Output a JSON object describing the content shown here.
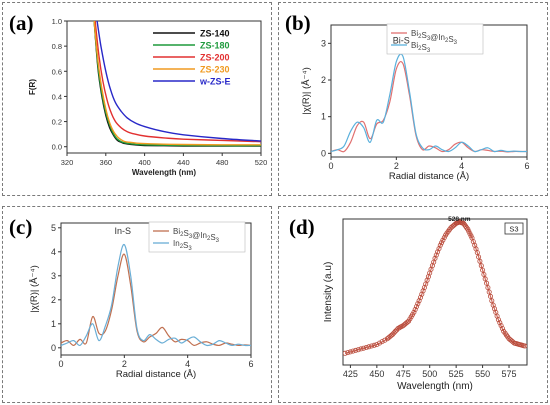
{
  "chart_data": [
    {
      "panel": "(a)",
      "type": "line",
      "xlabel": "Wavelength (nm)",
      "ylabel": "F(R)",
      "xlim": [
        320,
        520
      ],
      "ylim": [
        -0.05,
        1.0
      ],
      "xticks": [
        "320",
        "360",
        "400",
        "440",
        "480",
        "520"
      ],
      "yticks": [
        "0.0",
        "0.2",
        "0.4",
        "0.6",
        "0.8",
        "1.0"
      ],
      "legend_position": "top-right",
      "series": [
        {
          "name": "ZS-140",
          "color": "#111111",
          "x": [
            348,
            352,
            356,
            360,
            364,
            368,
            372,
            376,
            380,
            390,
            400,
            420,
            440,
            480,
            520
          ],
          "y": [
            1.0,
            0.62,
            0.4,
            0.25,
            0.15,
            0.09,
            0.05,
            0.035,
            0.025,
            0.015,
            0.01,
            0.008,
            0.006,
            0.005,
            0.005
          ]
        },
        {
          "name": "ZS-180",
          "color": "#1e9a3c",
          "x": [
            348,
            352,
            356,
            360,
            364,
            368,
            372,
            376,
            380,
            390,
            400,
            420,
            440,
            480,
            520
          ],
          "y": [
            1.0,
            0.64,
            0.42,
            0.27,
            0.17,
            0.1,
            0.06,
            0.04,
            0.03,
            0.02,
            0.015,
            0.012,
            0.01,
            0.008,
            0.008
          ]
        },
        {
          "name": "ZS-200",
          "color": "#e23030",
          "x": [
            349,
            353,
            357,
            361,
            365,
            370,
            376,
            382,
            390,
            400,
            420,
            440,
            480,
            520
          ],
          "y": [
            1.0,
            0.72,
            0.52,
            0.38,
            0.28,
            0.2,
            0.15,
            0.12,
            0.1,
            0.085,
            0.07,
            0.06,
            0.05,
            0.04
          ]
        },
        {
          "name": "ZS-230",
          "color": "#f09a20",
          "x": [
            348,
            352,
            356,
            360,
            364,
            368,
            372,
            376,
            380,
            390,
            400,
            420,
            440,
            480,
            520
          ],
          "y": [
            1.0,
            0.68,
            0.46,
            0.3,
            0.19,
            0.12,
            0.08,
            0.055,
            0.04,
            0.03,
            0.025,
            0.02,
            0.018,
            0.015,
            0.015
          ]
        },
        {
          "name": "w-ZS-E",
          "color": "#2828c8",
          "x": [
            351,
            355,
            360,
            365,
            370,
            376,
            382,
            390,
            400,
            420,
            440,
            480,
            520
          ],
          "y": [
            1.0,
            0.8,
            0.6,
            0.45,
            0.35,
            0.28,
            0.23,
            0.19,
            0.16,
            0.12,
            0.095,
            0.065,
            0.045
          ]
        }
      ]
    },
    {
      "panel": "(b)",
      "type": "line",
      "xlabel": "Radial distance (Å)",
      "ylabel": "|χ(R)| (Å⁻⁴)",
      "xlim": [
        0,
        6
      ],
      "ylim": [
        -0.1,
        3.5
      ],
      "xticks": [
        "0",
        "2",
        "4",
        "6"
      ],
      "yticks": [
        "0",
        "1",
        "2",
        "3"
      ],
      "legend_position": "top-right",
      "annotations": [
        "Bi-S"
      ],
      "series": [
        {
          "name": "Bi2S3@In2S3",
          "color": "#e07070",
          "x": [
            0,
            0.2,
            0.4,
            0.6,
            0.8,
            1.0,
            1.2,
            1.4,
            1.6,
            1.8,
            2.0,
            2.2,
            2.4,
            2.6,
            2.8,
            3.0,
            3.2,
            3.4,
            3.6,
            3.8,
            4.0,
            4.2,
            4.4,
            4.6,
            4.8,
            5.0,
            5.2,
            5.4,
            5.6,
            5.8,
            6.0
          ],
          "y": [
            0.05,
            0.1,
            0.05,
            0.3,
            0.75,
            0.85,
            0.4,
            0.8,
            0.9,
            1.4,
            2.3,
            2.45,
            1.6,
            0.5,
            0.1,
            0.2,
            0.15,
            0.05,
            0.1,
            0.25,
            0.3,
            0.15,
            0.05,
            0.1,
            0.08,
            0.05,
            0.06,
            0.04,
            0.05,
            0.05,
            0.05
          ]
        },
        {
          "name": "Bi2S3",
          "color": "#5ab0dc",
          "x": [
            0,
            0.2,
            0.4,
            0.6,
            0.8,
            1.0,
            1.2,
            1.4,
            1.6,
            1.8,
            2.0,
            2.2,
            2.4,
            2.6,
            2.8,
            3.0,
            3.2,
            3.4,
            3.6,
            3.8,
            4.0,
            4.2,
            4.4,
            4.6,
            4.8,
            5.0,
            5.2,
            5.4,
            5.6,
            5.8,
            6.0
          ],
          "y": [
            0.05,
            0.1,
            0.2,
            0.6,
            0.85,
            0.7,
            0.3,
            0.9,
            0.85,
            1.6,
            2.5,
            2.65,
            1.7,
            0.55,
            0.15,
            0.1,
            0.2,
            0.1,
            0.05,
            0.15,
            0.3,
            0.2,
            0.05,
            0.1,
            0.15,
            0.05,
            0.08,
            0.05,
            0.06,
            0.05,
            0.05
          ]
        }
      ]
    },
    {
      "panel": "(c)",
      "type": "line",
      "xlabel": "Radial distance (Å)",
      "ylabel": "|χ(R)| (Å⁻⁴)",
      "xlim": [
        0,
        6
      ],
      "ylim": [
        -0.3,
        5.2
      ],
      "xticks": [
        "0",
        "2",
        "4",
        "6"
      ],
      "yticks": [
        "0",
        "1",
        "2",
        "3",
        "4",
        "5"
      ],
      "legend_position": "top-right",
      "annotations": [
        "In-S"
      ],
      "series": [
        {
          "name": "Bi2S3@In2S3",
          "color": "#c07050",
          "x": [
            0,
            0.2,
            0.4,
            0.6,
            0.8,
            1.0,
            1.2,
            1.4,
            1.6,
            1.8,
            2.0,
            2.2,
            2.4,
            2.6,
            2.8,
            3.0,
            3.2,
            3.4,
            3.6,
            3.8,
            4.0,
            4.2,
            4.4,
            4.6,
            4.8,
            5.0,
            5.2,
            5.4,
            5.6,
            5.8,
            6.0
          ],
          "y": [
            0.2,
            0.3,
            0.1,
            0.35,
            0.2,
            1.3,
            0.6,
            0.7,
            1.6,
            3.0,
            3.9,
            2.6,
            0.7,
            0.25,
            0.45,
            0.6,
            0.85,
            0.5,
            0.25,
            0.35,
            0.3,
            0.1,
            0.2,
            0.25,
            0.15,
            0.1,
            0.2,
            0.15,
            0.1,
            0.12,
            0.1
          ]
        },
        {
          "name": "In2S3",
          "color": "#6aaed6",
          "x": [
            0,
            0.2,
            0.4,
            0.6,
            0.8,
            1.0,
            1.2,
            1.4,
            1.6,
            1.8,
            2.0,
            2.2,
            2.4,
            2.6,
            2.8,
            3.0,
            3.2,
            3.4,
            3.6,
            3.8,
            4.0,
            4.2,
            4.4,
            4.6,
            4.8,
            5.0,
            5.2,
            5.4,
            5.6,
            5.8,
            6.0
          ],
          "y": [
            0.1,
            0.2,
            0.3,
            0.1,
            0.5,
            1.0,
            0.3,
            0.9,
            1.8,
            3.4,
            4.3,
            3.0,
            0.8,
            0.3,
            0.55,
            0.35,
            0.2,
            0.35,
            0.4,
            0.2,
            0.35,
            0.45,
            0.25,
            0.1,
            0.15,
            0.3,
            0.2,
            0.1,
            0.15,
            0.1,
            0.1
          ]
        }
      ]
    },
    {
      "panel": "(d)",
      "type": "scatter",
      "xlabel": "Wavelength (nm)",
      "ylabel": "Intensity (a.u)",
      "xlim": [
        418,
        592
      ],
      "ylim": [
        0,
        1
      ],
      "xticks": [
        "425",
        "450",
        "475",
        "500",
        "525",
        "550",
        "575"
      ],
      "legend": "S3",
      "legend_position": "top-right",
      "annotations": [
        "528 nm"
      ],
      "peak_x": 528,
      "series": [
        {
          "name": "S3",
          "color": "#b84a3a",
          "x": [
            420,
            430,
            440,
            450,
            460,
            465,
            470,
            475,
            480,
            485,
            490,
            495,
            500,
            505,
            510,
            515,
            520,
            525,
            528,
            532,
            536,
            540,
            545,
            550,
            555,
            560,
            565,
            570,
            575,
            580,
            585,
            590
          ],
          "y": [
            0.08,
            0.1,
            0.12,
            0.14,
            0.18,
            0.21,
            0.25,
            0.27,
            0.3,
            0.36,
            0.44,
            0.53,
            0.63,
            0.73,
            0.82,
            0.89,
            0.94,
            0.97,
            0.98,
            0.97,
            0.93,
            0.87,
            0.77,
            0.65,
            0.53,
            0.41,
            0.31,
            0.23,
            0.18,
            0.15,
            0.14,
            0.13
          ]
        }
      ]
    }
  ]
}
